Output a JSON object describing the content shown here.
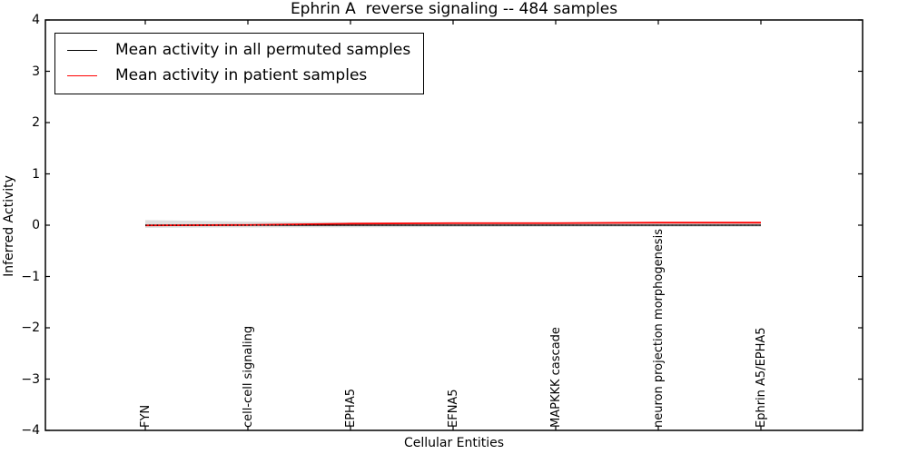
{
  "figure": {
    "background_color": "#ffffff",
    "border_color": "#000000"
  },
  "chart_data": {
    "type": "line",
    "title": "Ephrin A  reverse signaling -- 484 samples",
    "xlabel": "Cellular Entities",
    "ylabel": "Inferred Activity",
    "ylim": [
      -4,
      4
    ],
    "ytick_labels": [
      "4",
      "3",
      "2",
      "1",
      "0",
      "−1",
      "−2",
      "−3",
      "−4"
    ],
    "ytick_values": [
      4,
      3,
      2,
      1,
      0,
      -1,
      -2,
      -3,
      -4
    ],
    "categories": [
      "FYN",
      "cell-cell signaling",
      "EPHA5",
      "EFNA5",
      "MAPKKK cascade",
      "neuron projection morphogenesis",
      "Ephrin A5/EPHA5"
    ],
    "series": [
      {
        "name": "Mean activity in all permuted samples",
        "color": "#000000",
        "style": "solid",
        "values": [
          0,
          0,
          0,
          0,
          0,
          0,
          0
        ]
      },
      {
        "name": "Mean activity in patient samples",
        "color": "#ff0000",
        "style": "solid",
        "values": [
          -0.005,
          0.005,
          0.03,
          0.04,
          0.04,
          0.05,
          0.05
        ]
      }
    ],
    "permuted_band": {
      "color": "#dedede",
      "upper": [
        0.1,
        0.071,
        0.055,
        0.05,
        0.045,
        0.045,
        0.045
      ],
      "lower": [
        -0.05,
        -0.044,
        -0.041,
        -0.035,
        -0.03,
        -0.03,
        -0.03
      ]
    },
    "zero_line": {
      "value": 0,
      "style": "dotted",
      "color": "#000000"
    },
    "legend_position": "upper left",
    "grid": false
  }
}
